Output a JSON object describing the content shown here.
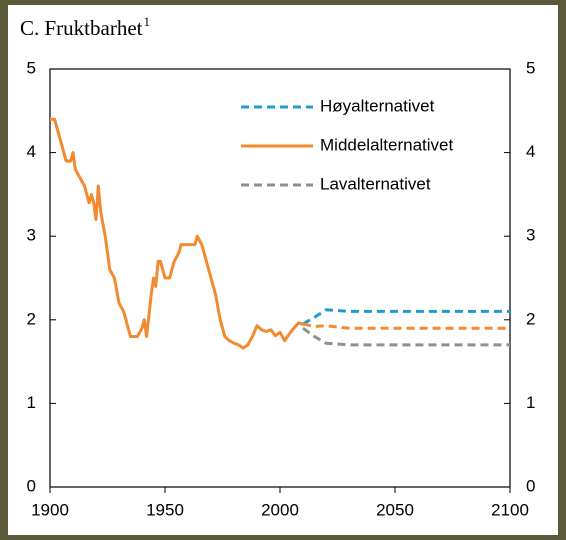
{
  "chart_data": {
    "type": "line",
    "title": "C.  Fruktbarhet",
    "title_superscript": "1",
    "xlim": [
      1900,
      2100
    ],
    "xticks": [
      1900,
      1950,
      2000,
      2050,
      2100
    ],
    "ylim": [
      0,
      5
    ],
    "yticks": [
      0,
      1,
      2,
      3,
      4,
      5
    ],
    "y2lim": [
      0,
      5
    ],
    "y2ticks": [
      0,
      1,
      2,
      3,
      4,
      5
    ],
    "legend": "upper right",
    "series": [
      {
        "name": "Høyalternativet",
        "color": "#1f9bd1",
        "dashed": true,
        "x": [
          2010,
          2015,
          2020,
          2030,
          2100
        ],
        "values": [
          1.95,
          2.03,
          2.12,
          2.1,
          2.1
        ]
      },
      {
        "name": "Middelalternativet",
        "color": "#f28a30",
        "dashed": false,
        "dashed_after": 2010,
        "x": [
          1900,
          1902,
          1905,
          1907,
          1909,
          1910,
          1911,
          1913,
          1915,
          1917,
          1918,
          1919,
          1920,
          1921,
          1922,
          1924,
          1926,
          1928,
          1930,
          1932,
          1934,
          1935,
          1938,
          1940,
          1941,
          1942,
          1944,
          1945,
          1946,
          1947,
          1948,
          1950,
          1952,
          1954,
          1956,
          1957,
          1963,
          1964,
          1966,
          1968,
          1970,
          1972,
          1974,
          1976,
          1978,
          1980,
          1982,
          1984,
          1986,
          1988,
          1990,
          1992,
          1994,
          1996,
          1998,
          2000,
          2002,
          2004,
          2006,
          2008,
          2010,
          2015,
          2020,
          2030,
          2100
        ],
        "values": [
          4.4,
          4.4,
          4.1,
          3.9,
          3.9,
          4.0,
          3.8,
          3.7,
          3.6,
          3.4,
          3.5,
          3.4,
          3.2,
          3.6,
          3.3,
          3.0,
          2.6,
          2.5,
          2.2,
          2.1,
          1.9,
          1.8,
          1.8,
          1.9,
          2.0,
          1.8,
          2.3,
          2.5,
          2.4,
          2.7,
          2.7,
          2.5,
          2.5,
          2.7,
          2.8,
          2.9,
          2.9,
          3.0,
          2.9,
          2.7,
          2.5,
          2.3,
          2.0,
          1.8,
          1.75,
          1.72,
          1.7,
          1.66,
          1.7,
          1.8,
          1.93,
          1.88,
          1.86,
          1.88,
          1.81,
          1.85,
          1.75,
          1.83,
          1.9,
          1.96,
          1.95,
          1.92,
          1.93,
          1.9,
          1.9
        ]
      },
      {
        "name": "Lavalternativet",
        "color": "#8f8f8f",
        "dashed": true,
        "x": [
          2010,
          2015,
          2020,
          2030,
          2100
        ],
        "values": [
          1.9,
          1.8,
          1.72,
          1.7,
          1.7
        ]
      }
    ]
  }
}
